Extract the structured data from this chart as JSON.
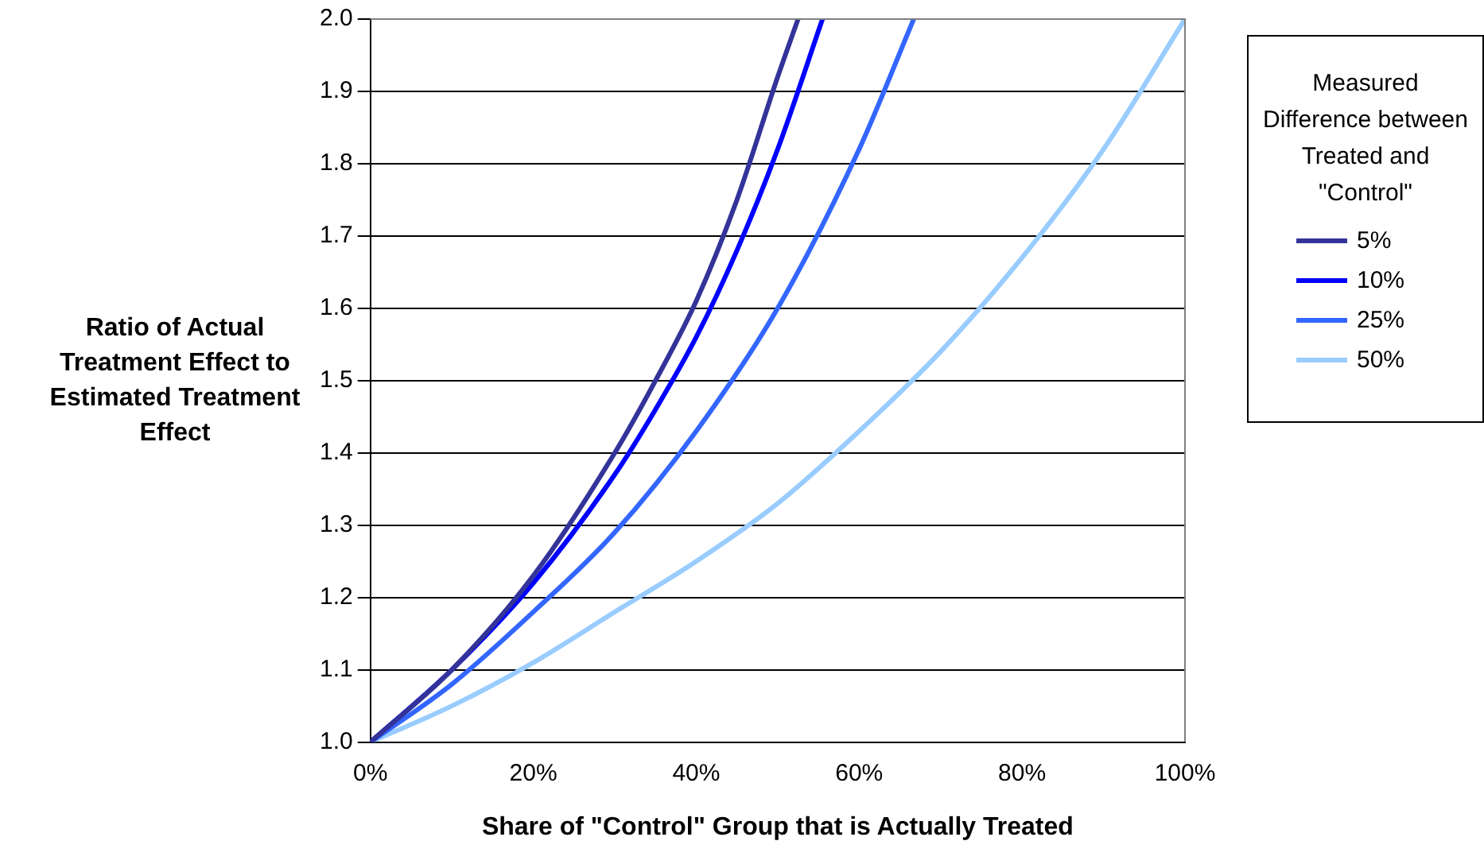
{
  "chart_data": {
    "type": "line",
    "xlabel": "Share of \"Control\" Group that is Actually Treated",
    "ylabel": "Ratio of Actual Treatment Effect to Estimated Treatment Effect",
    "legend_title": "Measured Difference between Treated and \"Control\"",
    "legend": "right",
    "grid": "y",
    "marker": "none",
    "line_style": "solid",
    "xlim": [
      0,
      100
    ],
    "xticks": [
      {
        "value": 0,
        "label": "0%"
      },
      {
        "value": 20,
        "label": "20%"
      },
      {
        "value": 40,
        "label": "40%"
      },
      {
        "value": 60,
        "label": "60%"
      },
      {
        "value": 80,
        "label": "80%"
      },
      {
        "value": 100,
        "label": "100%"
      }
    ],
    "ylim": [
      1,
      2
    ],
    "yticks": [
      {
        "value": 1,
        "label": "1.0"
      },
      {
        "value": 1.1,
        "label": "1.1"
      },
      {
        "value": 1.2,
        "label": "1.2"
      },
      {
        "value": 1.3,
        "label": "1.3"
      },
      {
        "value": 1.4,
        "label": "1.4"
      },
      {
        "value": 1.5,
        "label": "1.5"
      },
      {
        "value": 1.6,
        "label": "1.6"
      },
      {
        "value": 1.7,
        "label": "1.7"
      },
      {
        "value": 1.8,
        "label": "1.8"
      },
      {
        "value": 1.9,
        "label": "1.9"
      },
      {
        "value": 2,
        "label": "2.0"
      }
    ],
    "series": [
      {
        "name": "5%",
        "color": "#333399",
        "x": [
          0,
          10,
          20,
          30,
          35,
          40,
          45,
          50,
          52.5
        ],
        "values": [
          1,
          1.1,
          1.23,
          1.4,
          1.5,
          1.61,
          1.75,
          1.92,
          2
        ]
      },
      {
        "name": "10%",
        "color": "#0000ff",
        "x": [
          0,
          10,
          20,
          30,
          35,
          40,
          45,
          50,
          55.5
        ],
        "values": [
          1,
          1.1,
          1.22,
          1.37,
          1.46,
          1.56,
          1.68,
          1.82,
          2
        ]
      },
      {
        "name": "25%",
        "color": "#3366ff",
        "x": [
          0,
          10,
          20,
          30,
          40,
          50,
          60,
          66.7
        ],
        "values": [
          1,
          1.08,
          1.18,
          1.29,
          1.43,
          1.6,
          1.82,
          2
        ]
      },
      {
        "name": "50%",
        "color": "#99ccff",
        "x": [
          0,
          10,
          20,
          30,
          40,
          50,
          60,
          70,
          80,
          90,
          100
        ],
        "values": [
          1,
          1.05,
          1.11,
          1.18,
          1.25,
          1.33,
          1.43,
          1.54,
          1.67,
          1.82,
          2
        ]
      }
    ]
  }
}
